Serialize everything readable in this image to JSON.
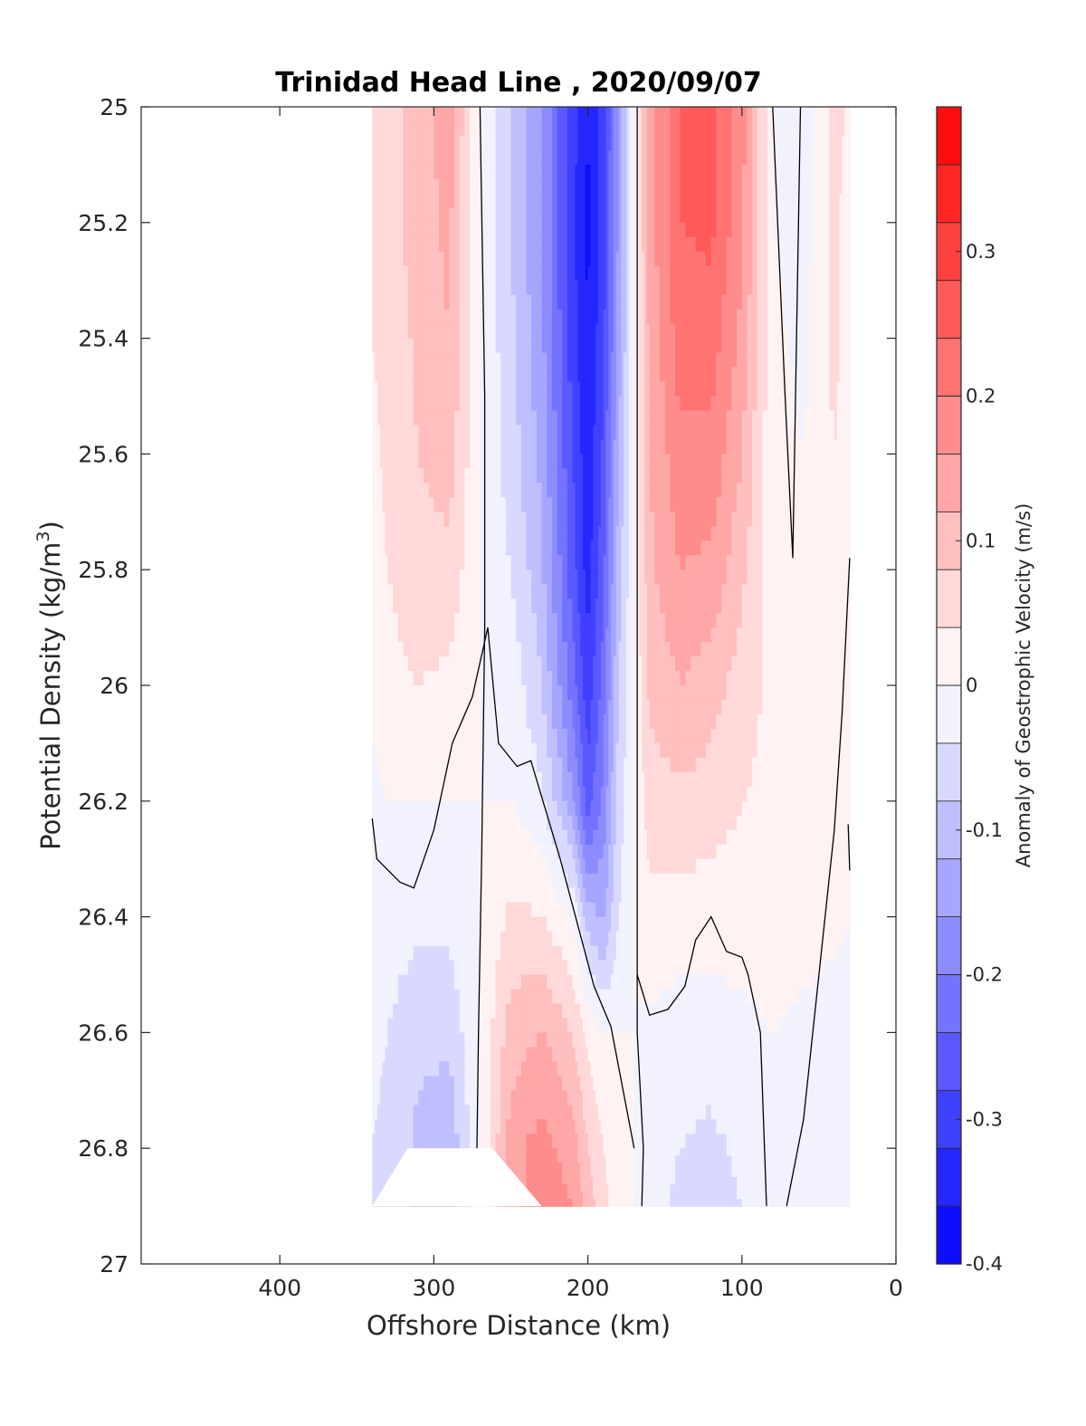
{
  "chart_data": {
    "type": "heatmap",
    "title": "Trinidad Head Line , 2020/09/07",
    "xlabel": "Offshore Distance (km)",
    "ylabel": "Potential Density (kg/m",
    "ylabel_sup": "3",
    "ylabel_close": ")",
    "colorbar_label": "Anomaly of Geostrophic Velocity (m/s)",
    "xlim": [
      490,
      0
    ],
    "ylim": [
      25,
      27
    ],
    "x_ticks": [
      400,
      300,
      200,
      100,
      0
    ],
    "y_ticks": [
      25,
      25.2,
      25.4,
      25.6,
      25.8,
      26,
      26.2,
      26.4,
      26.6,
      26.8,
      27
    ],
    "y_tick_labels": [
      "25",
      "25.2",
      "25.4",
      "25.6",
      "25.8",
      "26",
      "26.2",
      "26.4",
      "26.6",
      "26.8",
      "27"
    ],
    "colorbar_range": [
      -0.4,
      0.4
    ],
    "colorbar_ticks": [
      -0.4,
      -0.3,
      -0.2,
      -0.1,
      0,
      0.1,
      0.2,
      0.3
    ],
    "colorbar_tick_labels": [
      "-0.4",
      "-0.3",
      "-0.2",
      "-0.1",
      "0",
      "0.1",
      "0.2",
      "0.3"
    ],
    "colorbar_levels": 20,
    "colormap": {
      "negative": "#0000ff",
      "zero": "#ffffff",
      "positive": "#ff0000"
    },
    "data_extent": {
      "x_min": 30,
      "x_max": 340,
      "y_min": 25,
      "y_max": 26.9
    },
    "x_stations": [
      340,
      330,
      310,
      290,
      270,
      250,
      230,
      210,
      200,
      190,
      180,
      170,
      160,
      140,
      120,
      100,
      80,
      60,
      40,
      30
    ],
    "y_levels": [
      25.0,
      25.2,
      25.4,
      25.6,
      25.8,
      26.0,
      26.2,
      26.4,
      26.6,
      26.8,
      26.9
    ],
    "values": [
      [
        0.04,
        0.06,
        0.1,
        0.14,
        0.0,
        -0.08,
        -0.16,
        -0.3,
        -0.36,
        -0.3,
        -0.16,
        0.0,
        0.14,
        0.24,
        0.26,
        0.18,
        0.0,
        -0.03,
        0.06,
        0.03
      ],
      [
        0.04,
        0.06,
        0.1,
        0.13,
        0.0,
        -0.08,
        -0.16,
        -0.31,
        -0.37,
        -0.3,
        -0.15,
        0.0,
        0.14,
        0.24,
        0.25,
        0.17,
        0.0,
        -0.02,
        0.05,
        0.02
      ],
      [
        0.04,
        0.05,
        0.09,
        0.12,
        0.0,
        -0.07,
        -0.15,
        -0.3,
        -0.36,
        -0.29,
        -0.14,
        0.0,
        0.13,
        0.22,
        0.22,
        0.15,
        0.01,
        -0.01,
        0.05,
        0.02
      ],
      [
        0.03,
        0.05,
        0.08,
        0.1,
        0.0,
        -0.06,
        -0.13,
        -0.28,
        -0.35,
        -0.27,
        -0.12,
        0.0,
        0.12,
        0.19,
        0.19,
        0.12,
        0.01,
        0.0,
        0.04,
        0.02
      ],
      [
        0.02,
        0.04,
        0.06,
        0.07,
        0.0,
        -0.04,
        -0.11,
        -0.26,
        -0.34,
        -0.25,
        -0.1,
        0.0,
        0.11,
        0.16,
        0.15,
        0.09,
        0.02,
        0.02,
        0.03,
        0.01
      ],
      [
        0.01,
        0.03,
        0.04,
        0.03,
        0.0,
        -0.01,
        -0.08,
        -0.22,
        -0.31,
        -0.22,
        -0.08,
        0.0,
        0.09,
        0.12,
        0.1,
        0.06,
        0.03,
        0.03,
        0.02,
        0.01
      ],
      [
        -0.01,
        0.0,
        0.0,
        0.0,
        0.0,
        0.0,
        -0.03,
        -0.15,
        -0.26,
        -0.19,
        -0.06,
        0.0,
        0.06,
        0.07,
        0.06,
        0.04,
        0.03,
        0.03,
        0.02,
        0.0
      ],
      [
        -0.01,
        -0.02,
        -0.03,
        -0.03,
        0.0,
        0.05,
        0.04,
        0.0,
        -0.1,
        -0.13,
        -0.04,
        0.0,
        0.03,
        0.02,
        0.02,
        0.02,
        0.02,
        0.02,
        0.01,
        0.0
      ],
      [
        -0.03,
        -0.04,
        -0.07,
        -0.07,
        0.0,
        0.1,
        0.12,
        0.08,
        0.03,
        0.0,
        0.0,
        0.0,
        -0.01,
        -0.02,
        -0.02,
        -0.01,
        0.0,
        -0.01,
        -0.02,
        -0.01
      ],
      [
        -0.04,
        -0.05,
        -0.09,
        -0.11,
        0.0,
        0.14,
        0.18,
        0.14,
        0.08,
        0.04,
        0.0,
        0.0,
        -0.02,
        -0.04,
        -0.05,
        -0.03,
        0.0,
        -0.02,
        -0.03,
        -0.01
      ],
      [
        -0.04,
        -0.05,
        -0.09,
        -0.1,
        0.0,
        0.14,
        0.19,
        0.16,
        0.1,
        0.06,
        0.0,
        0.0,
        -0.02,
        -0.05,
        -0.06,
        -0.04,
        0.0,
        -0.02,
        -0.03,
        -0.01
      ]
    ],
    "zero_contours": [
      {
        "x": [
          270,
          267,
          267,
          269,
          271,
          272
        ],
        "y": [
          25.0,
          25.5,
          25.9,
          26.3,
          26.6,
          26.8
        ]
      },
      {
        "x": [
          168,
          168,
          168,
          168,
          164,
          165
        ],
        "y": [
          25.0,
          25.8,
          26.3,
          26.6,
          26.8,
          26.9
        ]
      },
      {
        "x": [
          340,
          337,
          322,
          313,
          300,
          288,
          275,
          265,
          258,
          246,
          237,
          218,
          205,
          196,
          185,
          170
        ],
        "y": [
          26.23,
          26.3,
          26.34,
          26.35,
          26.25,
          26.1,
          26.02,
          25.9,
          26.1,
          26.14,
          26.13,
          26.3,
          26.43,
          26.52,
          26.59,
          26.8
        ]
      },
      {
        "x": [
          168,
          160,
          148,
          137,
          130,
          120,
          110,
          100,
          96,
          88,
          84
        ],
        "y": [
          26.5,
          26.57,
          26.56,
          26.52,
          26.44,
          26.4,
          26.46,
          26.47,
          26.5,
          26.6,
          26.9
        ]
      },
      {
        "x": [
          80,
          72,
          67,
          62
        ],
        "y": [
          25.0,
          25.5,
          25.78,
          25.0
        ]
      },
      {
        "x": [
          71,
          60,
          50,
          40,
          35,
          30
        ],
        "y": [
          26.9,
          26.75,
          26.5,
          26.25,
          26.05,
          25.78
        ]
      },
      {
        "x": [
          30,
          31
        ],
        "y": [
          26.32,
          26.24
        ]
      }
    ],
    "masked_region": {
      "x": [
        317,
        262,
        230,
        217,
        340
      ],
      "y": [
        26.8,
        26.8,
        26.9,
        26.9,
        26.9
      ]
    }
  }
}
